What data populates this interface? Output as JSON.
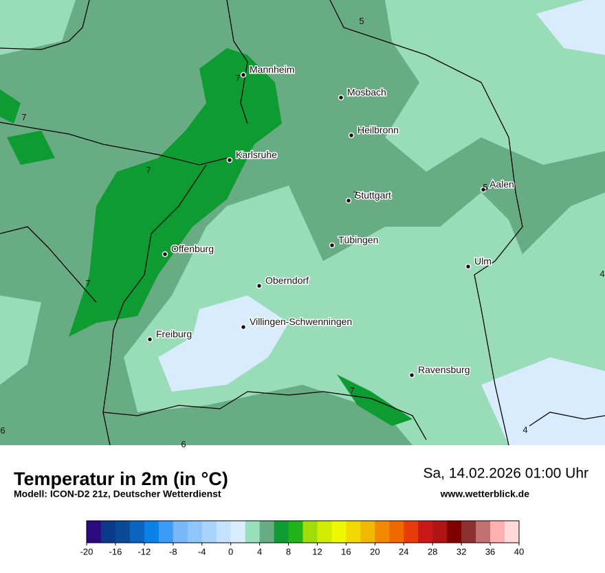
{
  "map": {
    "cities": [
      "Mannheim",
      "Mosbach",
      "Heilbronn",
      "Karlsruhe",
      "Aalen",
      "Stuttgart",
      "Tübingen",
      "Offenburg",
      "Ulm",
      "Oberndorf",
      "Villingen-Schwenningen",
      "Freiburg",
      "Ravensburg"
    ],
    "contour_labels": [
      "5",
      "7",
      "7",
      "7",
      "7",
      "5",
      "4",
      "7",
      "7",
      "4",
      "6",
      "6"
    ]
  },
  "footer": {
    "title": "Temperatur in 2m (in °C)",
    "model": "Modell: ICON-D2 21z, Deutscher Wetterdienst",
    "datetime": "Sa, 14.02.2026 01:00 Uhr",
    "website": "www.wetterblick.de"
  },
  "colorbar": {
    "ticks": [
      -20,
      -16,
      -12,
      -8,
      -4,
      0,
      4,
      8,
      12,
      16,
      20,
      24,
      28,
      32,
      36,
      40
    ],
    "colors": [
      "#2b0a7f",
      "#0c3a8a",
      "#0a4a96",
      "#0a64c0",
      "#0a82e6",
      "#3c9cf5",
      "#78b8f8",
      "#8ec6fa",
      "#a8d4fc",
      "#c4e2fe",
      "#d8ecfe",
      "#98e0bc",
      "#68ac84",
      "#0e9c32",
      "#20b418",
      "#a0dc0a",
      "#d0ec00",
      "#f0f800",
      "#f0d800",
      "#f0b800",
      "#f08800",
      "#f06800",
      "#e83c0a",
      "#c81818",
      "#b01414",
      "#800000",
      "#8c3030",
      "#c07070",
      "#ffb0b0",
      "#ffd8d8"
    ]
  }
}
